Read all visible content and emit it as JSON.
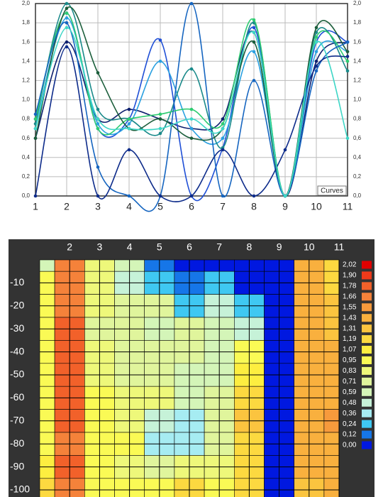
{
  "chart_data": [
    {
      "type": "line",
      "annotation": "Curves",
      "x": [
        1,
        2,
        3,
        4,
        5,
        6,
        7,
        8,
        9,
        10,
        11
      ],
      "xticks": [
        1,
        2,
        3,
        4,
        5,
        6,
        7,
        8,
        9,
        10,
        11
      ],
      "xlim": [
        1,
        11
      ],
      "ylim": [
        0,
        2
      ],
      "yticks": [
        {
          "value": 0,
          "label": "0,0"
        },
        {
          "value": 0.2,
          "label": "0,2"
        },
        {
          "value": 0.4,
          "label": "0,4"
        },
        {
          "value": 0.6,
          "label": "0,6"
        },
        {
          "value": 0.8,
          "label": "0,8"
        },
        {
          "value": 1,
          "label": "1,0"
        },
        {
          "value": 1.2,
          "label": "1,2"
        },
        {
          "value": 1.4,
          "label": "1,4"
        },
        {
          "value": 1.6,
          "label": "1,6"
        },
        {
          "value": 1.8,
          "label": "1,8"
        },
        {
          "value": 2,
          "label": "2,0"
        }
      ],
      "grid": true,
      "right_axis": true,
      "series": [
        {
          "color": "#0d1f6e",
          "values": [
            0.6,
            1.6,
            0.8,
            0.9,
            0.8,
            0.7,
            0.8,
            1.7,
            0,
            1.4,
            1.6
          ]
        },
        {
          "color": "#1f4fd6",
          "values": [
            0.8,
            1.9,
            0.7,
            0.8,
            1.62,
            0,
            0.5,
            1.75,
            0,
            1.6,
            1.6
          ]
        },
        {
          "color": "#2aa0e0",
          "values": [
            0.7,
            1.85,
            0.75,
            0.75,
            1.4,
            0.7,
            0.6,
            1.5,
            0,
            1.5,
            1.5
          ]
        },
        {
          "color": "#1a8a8a",
          "values": [
            0.75,
            2.0,
            0.9,
            0.8,
            0.65,
            1.32,
            0.5,
            1.8,
            0,
            1.7,
            1.3
          ]
        },
        {
          "color": "#2ecc71",
          "values": [
            0.8,
            1.9,
            0.7,
            0.8,
            0.85,
            0.9,
            0.75,
            1.83,
            0,
            1.65,
            1.4
          ]
        },
        {
          "color": "#1b5e3b",
          "values": [
            0.6,
            1.95,
            1.28,
            0.7,
            0.8,
            0.6,
            0.7,
            1.6,
            0,
            1.75,
            1.5
          ]
        },
        {
          "color": "#1565c0",
          "values": [
            0.85,
            1.8,
            0.3,
            0,
            0,
            2.0,
            0,
            1.2,
            0,
            1.3,
            1.6
          ]
        },
        {
          "color": "#0d2b8a",
          "values": [
            0,
            1.55,
            0,
            0.48,
            0,
            0,
            0.48,
            0,
            0.48,
            1.35,
            1.45
          ]
        },
        {
          "color": "#3dd6c6",
          "values": [
            0.7,
            1.75,
            0.8,
            0.7,
            0.7,
            0.8,
            0.7,
            1.7,
            0,
            1.6,
            0.6
          ]
        }
      ]
    },
    {
      "type": "heatmap",
      "x": [
        1,
        2,
        3,
        4,
        5,
        6,
        7,
        8,
        9,
        10,
        11
      ],
      "xlim": [
        1,
        11
      ],
      "xticks": [
        2,
        3,
        4,
        5,
        6,
        7,
        8,
        9,
        10,
        11
      ],
      "y": [
        0,
        -10,
        -20,
        -30,
        -40,
        -50,
        -60,
        -70,
        -80,
        -90,
        -100
      ],
      "ylim": [
        0,
        -100
      ],
      "yticks": [
        -10,
        -20,
        -30,
        -40,
        -50,
        -60,
        -70,
        -80,
        -90,
        -100
      ],
      "z": [
        [
          0.6,
          1.7,
          0.9,
          0.7,
          0.2,
          0.1,
          0.05,
          0.05,
          0.05,
          1.5,
          1.3
        ],
        [
          1.0,
          1.75,
          0.9,
          0.5,
          0.3,
          0.2,
          0.3,
          0.1,
          0.05,
          1.5,
          1.3
        ],
        [
          1.0,
          1.75,
          0.85,
          0.8,
          0.75,
          0.3,
          0.55,
          0.3,
          0.05,
          1.5,
          1.4
        ],
        [
          1.0,
          1.8,
          0.8,
          0.75,
          0.7,
          0.75,
          0.7,
          0.5,
          0.05,
          1.5,
          1.4
        ],
        [
          1.0,
          1.8,
          0.85,
          0.8,
          0.75,
          0.75,
          0.7,
          1.0,
          0.05,
          1.5,
          1.5
        ],
        [
          1.0,
          1.8,
          0.9,
          0.8,
          0.75,
          0.7,
          0.7,
          1.1,
          0.05,
          1.5,
          1.5
        ],
        [
          1.0,
          1.8,
          0.95,
          0.85,
          0.9,
          0.7,
          0.8,
          1.3,
          0.05,
          1.5,
          1.5
        ],
        [
          1.05,
          1.8,
          1.0,
          0.85,
          0.5,
          0.45,
          0.75,
          1.4,
          0.05,
          1.5,
          1.55
        ],
        [
          1.05,
          1.75,
          1.0,
          0.95,
          0.45,
          0.45,
          0.8,
          1.3,
          0.05,
          1.45,
          1.5
        ],
        [
          1.1,
          1.8,
          1.0,
          0.9,
          0.8,
          0.9,
          0.9,
          1.2,
          0.05,
          1.45,
          1.5
        ],
        [
          1.2,
          1.7,
          1.0,
          1.0,
          1.0,
          1.3,
          1.0,
          1.2,
          0.05,
          1.4,
          1.5
        ]
      ],
      "colorbar": [
        {
          "value": 2.02,
          "label": "2,02",
          "color": "#e00000"
        },
        {
          "value": 1.9,
          "label": "1,90",
          "color": "#ee3a1a"
        },
        {
          "value": 1.78,
          "label": "1,78",
          "color": "#f2612a"
        },
        {
          "value": 1.66,
          "label": "1,66",
          "color": "#f5823a"
        },
        {
          "value": 1.55,
          "label": "1,55",
          "color": "#f79a3c"
        },
        {
          "value": 1.43,
          "label": "1,43",
          "color": "#f9b03e"
        },
        {
          "value": 1.31,
          "label": "1,31",
          "color": "#fbc43f"
        },
        {
          "value": 1.19,
          "label": "1,19",
          "color": "#fcd940"
        },
        {
          "value": 1.07,
          "label": "1,07",
          "color": "#fdee40"
        },
        {
          "value": 0.95,
          "label": "0,95",
          "color": "#fafa55"
        },
        {
          "value": 0.83,
          "label": "0,83",
          "color": "#eef87a"
        },
        {
          "value": 0.71,
          "label": "0,71",
          "color": "#e0f59c"
        },
        {
          "value": 0.59,
          "label": "0,59",
          "color": "#d4f5b8"
        },
        {
          "value": 0.48,
          "label": "0,48",
          "color": "#c6f2d8"
        },
        {
          "value": 0.36,
          "label": "0,36",
          "color": "#a6ecf2"
        },
        {
          "value": 0.24,
          "label": "0,24",
          "color": "#3fc8f2"
        },
        {
          "value": 0.12,
          "label": "0,12",
          "color": "#1676e8"
        },
        {
          "value": 0,
          "label": "0,00",
          "color": "#0018e0"
        }
      ]
    }
  ]
}
